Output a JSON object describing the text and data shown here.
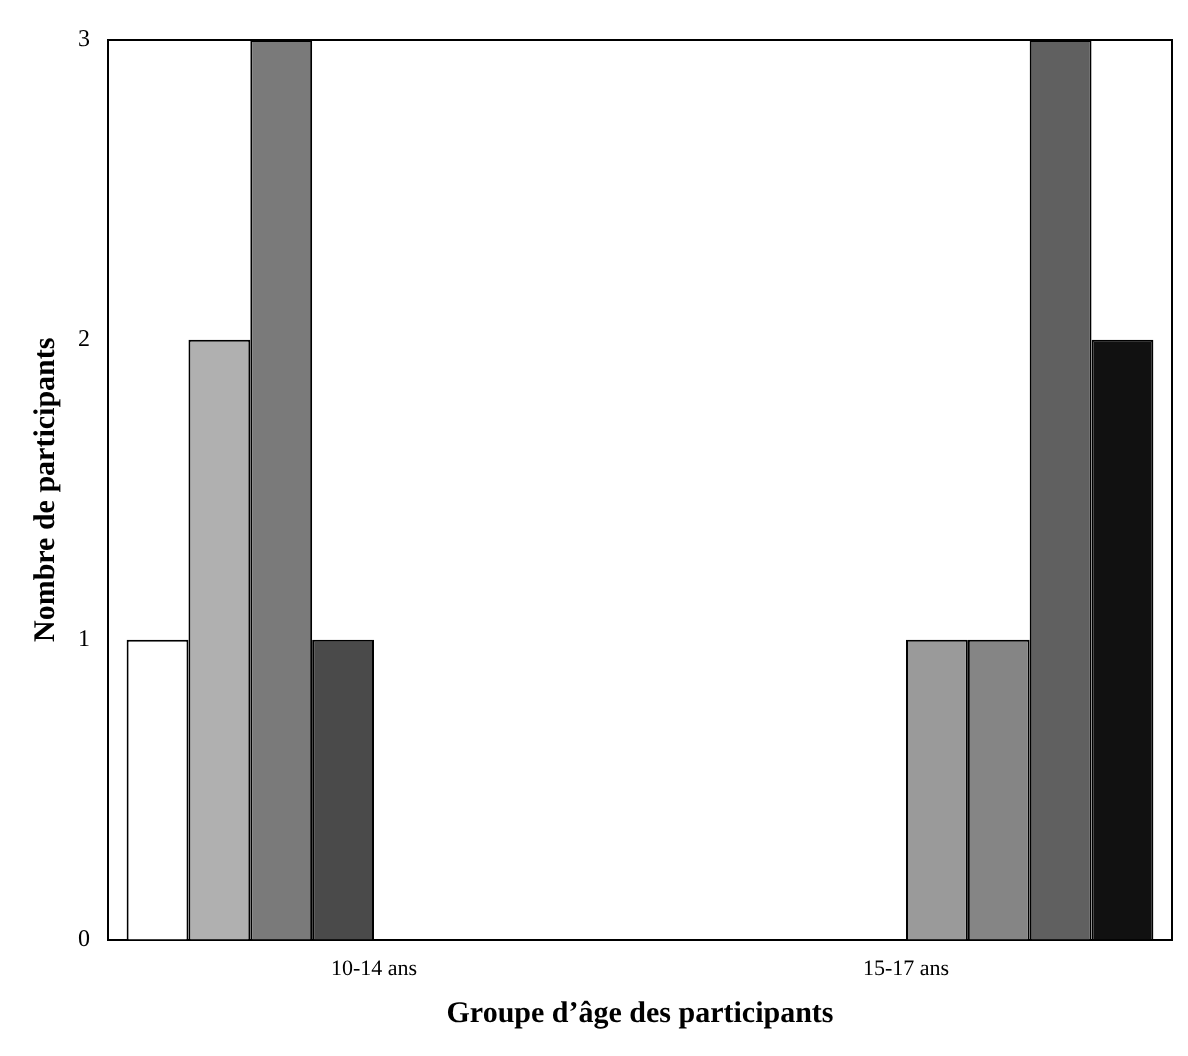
{
  "chart_data": {
    "type": "bar",
    "xlabel": "Groupe d’âge des participants",
    "ylabel": "Nombre de participants",
    "categories": [
      "10-14 ans",
      "15-17 ans"
    ],
    "series": [
      {
        "color": "#ffffff",
        "values": [
          1,
          0
        ]
      },
      {
        "color": "#b0b0b0",
        "values": [
          2,
          0
        ]
      },
      {
        "color": "#7a7a7a",
        "values": [
          3,
          0
        ]
      },
      {
        "color": "#4a4a4a",
        "values": [
          1,
          0
        ]
      },
      {
        "color": "#9a9a9a",
        "values": [
          0,
          1
        ]
      },
      {
        "color": "#858585",
        "values": [
          0,
          1
        ]
      },
      {
        "color": "#606060",
        "values": [
          0,
          3
        ]
      },
      {
        "color": "#111111",
        "values": [
          0,
          2
        ]
      }
    ],
    "ylim": [
      0,
      3
    ],
    "yticks": [
      0,
      1,
      2,
      3
    ],
    "grid": false,
    "legend": false
  }
}
